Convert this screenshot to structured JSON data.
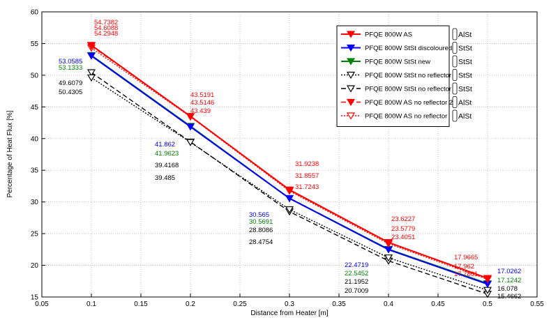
{
  "chart_data": {
    "type": "line",
    "title": "",
    "xlabel": "Distance from Heater [m]",
    "ylabel": "Percentage of Heat Flux [%]",
    "xlim": [
      0.05,
      0.55
    ],
    "ylim": [
      15,
      60
    ],
    "x": [
      0.1,
      0.2,
      0.3,
      0.4,
      0.5
    ],
    "xticks": [
      "0.05",
      "0.1",
      "0.15",
      "0.2",
      "0.25",
      "0.3",
      "0.35",
      "0.4",
      "0.45",
      "0.5",
      "0.55"
    ],
    "yticks": [
      "15",
      "20",
      "25",
      "30",
      "35",
      "40",
      "45",
      "50",
      "55",
      "60"
    ],
    "grid": true,
    "legend_position": "top-right",
    "series": [
      {
        "name": "PFQE 800W AS",
        "values": [
          54.7382,
          43.5191,
          31.9238,
          23.6227,
          17.9665
        ],
        "color": "#ff0000",
        "dash": "solid",
        "marker": "filled"
      },
      {
        "name": "PFQE 800W StSt discoloured",
        "values": [
          53.0585,
          41.862,
          30.565,
          22.4719,
          17.0262
        ],
        "color": "#0000ff",
        "dash": "solid",
        "marker": "filled"
      },
      {
        "name": "PFQE 800W StSt new",
        "values": [
          53.1333,
          41.9623,
          30.5691,
          22.5452,
          17.1242
        ],
        "color": "#008000",
        "dash": "solid",
        "marker": "filled"
      },
      {
        "name": "PFQE 800W StSt no reflector",
        "values": [
          49.6079,
          39.4168,
          28.8086,
          21.1952,
          16.078
        ],
        "color": "#000000",
        "dash": "dot",
        "marker": "open"
      },
      {
        "name": "PFQE 800W StSt no reflector 2",
        "values": [
          50.4305,
          39.485,
          28.4754,
          20.7009,
          15.4662
        ],
        "color": "#000000",
        "dash": "dash",
        "marker": "open"
      },
      {
        "name": "PFQE 800W AS no reflector 2",
        "values": [
          54.6088,
          43.5146,
          31.8557,
          23.5779,
          17.962
        ],
        "color": "#ff0000",
        "dash": "dash",
        "marker": "filled"
      },
      {
        "name": "PFQE 800W AS no reflector",
        "values": [
          54.2948,
          43.439,
          31.7243,
          23.4051,
          17.7861
        ],
        "color": "#ff0000",
        "dash": "dot",
        "marker": "open"
      }
    ],
    "data_labels": [
      {
        "text": "54.7382",
        "x": 0.1,
        "color": "#ff0000",
        "dx": 4,
        "dy": 35
      },
      {
        "text": "54.6088",
        "x": 0.1,
        "color": "#ff0000",
        "dx": 4,
        "dy": 43
      },
      {
        "text": "54.2948",
        "x": 0.1,
        "color": "#ff0000",
        "dx": 4,
        "dy": 51
      },
      {
        "text": "53.0585",
        "x": 0.1,
        "color": "#0000ff",
        "dx": -47,
        "dy": 91
      },
      {
        "text": "53.1333",
        "x": 0.1,
        "color": "#008000",
        "dx": -47,
        "dy": 100
      },
      {
        "text": "49.6079",
        "x": 0.1,
        "color": "#000000",
        "dx": -47,
        "dy": 122
      },
      {
        "text": "50.4305",
        "x": 0.1,
        "color": "#000000",
        "dx": -47,
        "dy": 135
      },
      {
        "text": "43.5191",
        "x": 0.2,
        "color": "#ff0000",
        "dx": 0,
        "dy": 139
      },
      {
        "text": "43.5146",
        "x": 0.2,
        "color": "#ff0000",
        "dx": 0,
        "dy": 150
      },
      {
        "text": "43.439",
        "x": 0.2,
        "color": "#ff0000",
        "dx": 0,
        "dy": 162
      },
      {
        "text": "41.862",
        "x": 0.2,
        "color": "#0000ff",
        "dx": -51,
        "dy": 210
      },
      {
        "text": "41.9623",
        "x": 0.2,
        "color": "#008000",
        "dx": -51,
        "dy": 223
      },
      {
        "text": "39.4168",
        "x": 0.2,
        "color": "#000000",
        "dx": -51,
        "dy": 240
      },
      {
        "text": "39.485",
        "x": 0.2,
        "color": "#000000",
        "dx": -51,
        "dy": 258
      },
      {
        "text": "31.9238",
        "x": 0.3,
        "color": "#ff0000",
        "dx": 8,
        "dy": 238
      },
      {
        "text": "31.8557",
        "x": 0.3,
        "color": "#ff0000",
        "dx": 8,
        "dy": 255
      },
      {
        "text": "31.7243",
        "x": 0.3,
        "color": "#ff0000",
        "dx": 8,
        "dy": 271
      },
      {
        "text": "30.565",
        "x": 0.3,
        "color": "#0000ff",
        "dx": -58,
        "dy": 311
      },
      {
        "text": "30.5691",
        "x": 0.3,
        "color": "#008000",
        "dx": -58,
        "dy": 321
      },
      {
        "text": "28.8086",
        "x": 0.3,
        "color": "#000000",
        "dx": -58,
        "dy": 333
      },
      {
        "text": "28.4754",
        "x": 0.3,
        "color": "#000000",
        "dx": -58,
        "dy": 350
      },
      {
        "text": "23.6227",
        "x": 0.4,
        "color": "#ff0000",
        "dx": 4,
        "dy": 317
      },
      {
        "text": "23.5779",
        "x": 0.4,
        "color": "#ff0000",
        "dx": 4,
        "dy": 331
      },
      {
        "text": "23.4051",
        "x": 0.4,
        "color": "#ff0000",
        "dx": 4,
        "dy": 343
      },
      {
        "text": "22.4719",
        "x": 0.4,
        "color": "#0000ff",
        "dx": -63,
        "dy": 383
      },
      {
        "text": "22.5452",
        "x": 0.4,
        "color": "#008000",
        "dx": -63,
        "dy": 395
      },
      {
        "text": "21.1952",
        "x": 0.4,
        "color": "#000000",
        "dx": -63,
        "dy": 407
      },
      {
        "text": "20.7009",
        "x": 0.4,
        "color": "#000000",
        "dx": -63,
        "dy": 420
      },
      {
        "text": "17.9665",
        "x": 0.5,
        "color": "#ff0000",
        "dx": -48,
        "dy": 372
      },
      {
        "text": "17.962",
        "x": 0.5,
        "color": "#ff0000",
        "dx": -48,
        "dy": 385
      },
      {
        "text": "17.7861",
        "x": 0.5,
        "color": "#ff0000",
        "dx": -48,
        "dy": 396
      },
      {
        "text": "17.0262",
        "x": 0.5,
        "color": "#0000ff",
        "dx": 14,
        "dy": 392
      },
      {
        "text": "17.1242",
        "x": 0.5,
        "color": "#008000",
        "dx": 14,
        "dy": 405
      },
      {
        "text": "16.078",
        "x": 0.5,
        "color": "#000000",
        "dx": 14,
        "dy": 417
      },
      {
        "text": "15.4662",
        "x": 0.5,
        "color": "#000000",
        "dx": 14,
        "dy": 428
      }
    ],
    "side_labels": [
      "AlSt",
      "StSt",
      "StSt",
      "StSt",
      "StSt",
      "AlSt",
      "AlSt"
    ]
  }
}
